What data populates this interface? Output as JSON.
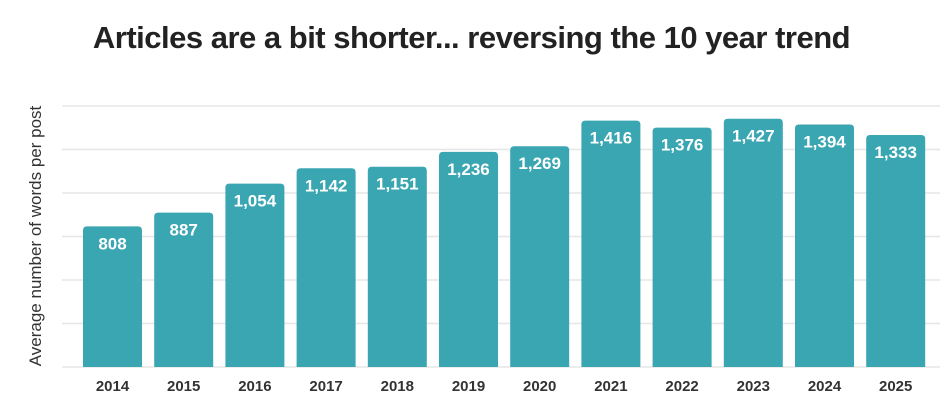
{
  "chart_data": {
    "type": "bar",
    "title": "Articles are a bit shorter... reversing the 10 year trend",
    "xlabel": "",
    "ylabel": "Average number of words per post",
    "categories": [
      "2014",
      "2015",
      "2016",
      "2017",
      "2018",
      "2019",
      "2020",
      "2021",
      "2022",
      "2023",
      "2024",
      "2025"
    ],
    "values": [
      808,
      887,
      1054,
      1142,
      1151,
      1236,
      1269,
      1416,
      1376,
      1427,
      1394,
      1333
    ],
    "value_labels": [
      "808",
      "887",
      "1,054",
      "1,142",
      "1,151",
      "1,236",
      "1,269",
      "1,416",
      "1,376",
      "1,427",
      "1,394",
      "1,333"
    ],
    "ylim": [
      0,
      1500
    ],
    "grid": true,
    "grid_step": 250,
    "y_tick_labels_shown": false,
    "bar_color": "#3AA6B2",
    "label_color": "#FFFFFF"
  }
}
